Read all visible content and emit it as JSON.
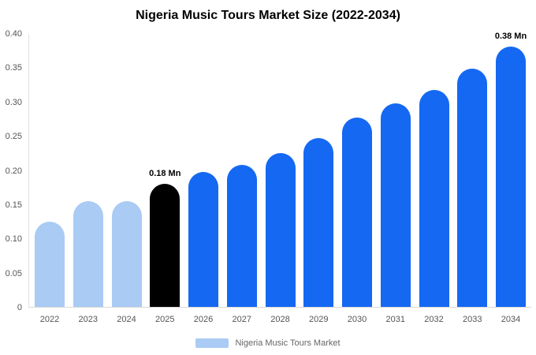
{
  "legend": {
    "label": "Nigeria Music Tours Market",
    "swatch_color": "#a9cbf4"
  },
  "colors": {
    "light_blue": "#a9cbf4",
    "highlight_black": "#000000",
    "bright_blue": "#1568f2",
    "axis_text": "#555555",
    "title_text": "#000000"
  },
  "chart_data": {
    "type": "bar",
    "title": "Nigeria Music Tours Market Size (2022-2034)",
    "categories": [
      "2022",
      "2023",
      "2024",
      "2025",
      "2026",
      "2027",
      "2028",
      "2029",
      "2030",
      "2031",
      "2032",
      "2033",
      "2034"
    ],
    "values": [
      0.125,
      0.155,
      0.155,
      0.18,
      0.197,
      0.207,
      0.225,
      0.247,
      0.277,
      0.297,
      0.317,
      0.348,
      0.38
    ],
    "bar_colors": [
      "#a9cbf4",
      "#a9cbf4",
      "#a9cbf4",
      "#000000",
      "#1568f2",
      "#1568f2",
      "#1568f2",
      "#1568f2",
      "#1568f2",
      "#1568f2",
      "#1568f2",
      "#1568f2",
      "#1568f2"
    ],
    "unit": "Mn",
    "annotations": [
      {
        "category": "2025",
        "text": "0.18 Mn"
      },
      {
        "category": "2034",
        "text": "0.38 Mn"
      }
    ],
    "xlabel": "",
    "ylabel": "",
    "ylim": [
      0,
      0.4
    ],
    "yticks": [
      "0",
      "0.05",
      "0.10",
      "0.15",
      "0.20",
      "0.25",
      "0.30",
      "0.35",
      "0.40"
    ],
    "grid": false,
    "legend_position": "bottom"
  }
}
